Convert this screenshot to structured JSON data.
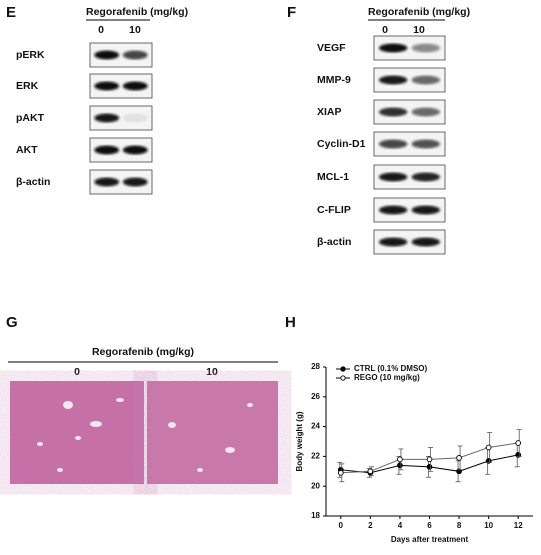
{
  "panels": {
    "E": {
      "letter": "E",
      "treatment": "Regorafenib (mg/kg)",
      "doses": [
        "0",
        "10"
      ],
      "rows": [
        "pERK",
        "ERK",
        "pAKT",
        "AKT",
        "β-actin"
      ]
    },
    "F": {
      "letter": "F",
      "treatment": "Regorafenib (mg/kg)",
      "doses": [
        "0",
        "10"
      ],
      "rows": [
        "VEGF",
        "MMP-9",
        "XIAP",
        "Cyclin-D1",
        "MCL-1",
        "C-FLIP",
        "β-actin"
      ]
    },
    "G": {
      "letter": "G",
      "treatment": "Regorafenib (mg/kg)",
      "doses": [
        "0",
        "10"
      ]
    },
    "H": {
      "letter": "H"
    }
  },
  "chart_data": {
    "type": "line",
    "xlabel": "Days after treatment",
    "ylabel": "Body weight (g)",
    "x": [
      0,
      2,
      4,
      6,
      8,
      10,
      12
    ],
    "xlim": [
      -1,
      13
    ],
    "xticks": [
      0,
      2,
      4,
      6,
      8,
      10,
      12
    ],
    "ylim": [
      18,
      28
    ],
    "yticks": [
      18,
      20,
      22,
      24,
      26,
      28
    ],
    "legend": "upper left",
    "series": [
      {
        "name": "CTRL (0.1% DMSO)",
        "color": "#000000",
        "marker": "filled",
        "values": [
          21.1,
          20.9,
          21.4,
          21.3,
          21.0,
          21.7,
          22.1
        ],
        "errors": [
          0.5,
          0.3,
          0.6,
          0.7,
          0.7,
          0.9,
          0.8
        ]
      },
      {
        "name": "REGO (10 mg/kg)",
        "color": "#000000",
        "marker": "open",
        "values": [
          20.9,
          21.0,
          21.8,
          21.8,
          21.9,
          22.6,
          22.9
        ],
        "errors": [
          0.6,
          0.3,
          0.7,
          0.8,
          0.8,
          1.0,
          0.9
        ]
      }
    ]
  }
}
